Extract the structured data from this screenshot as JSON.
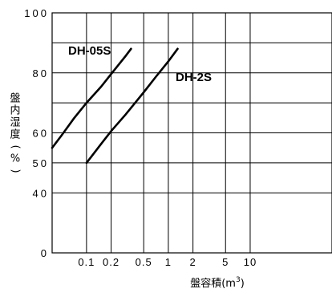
{
  "chart_data": {
    "type": "line",
    "title": "",
    "xlabel_main": "盤容積(",
    "xlabel_unit": "m",
    "xlabel_sup": "3",
    "xlabel_close": ")",
    "ylabel_chars": [
      "盤",
      "内",
      "湿",
      "度",
      "(",
      "%",
      ")"
    ],
    "x_scale": "log",
    "x_ticks": [
      {
        "value": 0.1,
        "label": "0.1"
      },
      {
        "value": 0.2,
        "label": "0.2"
      },
      {
        "value": 0.5,
        "label": "0.5"
      },
      {
        "value": 1,
        "label": "1"
      },
      {
        "value": 2,
        "label": "2"
      },
      {
        "value": 5,
        "label": "5"
      },
      {
        "value": 10,
        "label": "10"
      }
    ],
    "x_grid": [
      0.1,
      0.2,
      0.5,
      1,
      2,
      5,
      10
    ],
    "xlim": [
      0.038,
      100
    ],
    "y_ticks": [
      {
        "value": 0,
        "label": "0"
      },
      {
        "value": 40,
        "label": "40"
      },
      {
        "value": 50,
        "label": "50"
      },
      {
        "value": 60,
        "label": "60"
      },
      {
        "value": 80,
        "label": "80"
      },
      {
        "value": 100,
        "label": "100"
      }
    ],
    "y_scale_points": [
      {
        "value": 0,
        "pos": 0
      },
      {
        "value": 40,
        "pos": 2
      },
      {
        "value": 50,
        "pos": 3
      },
      {
        "value": 60,
        "pos": 4
      },
      {
        "value": 70,
        "pos": 5
      },
      {
        "value": 80,
        "pos": 6
      },
      {
        "value": 90,
        "pos": 7
      },
      {
        "value": 100,
        "pos": 8
      }
    ],
    "y_grid": [
      0,
      40,
      50,
      60,
      70,
      80,
      90,
      100
    ],
    "series": [
      {
        "name": "DH-05S",
        "points": [
          [
            0.038,
            55
          ],
          [
            0.05,
            59.3
          ],
          [
            0.07,
            64.8
          ],
          [
            0.1,
            70
          ],
          [
            0.15,
            75.3
          ],
          [
            0.2,
            79.6
          ],
          [
            0.3,
            85.6
          ],
          [
            0.35,
            88
          ]
        ]
      },
      {
        "name": "DH-2S",
        "points": [
          [
            0.1,
            50
          ],
          [
            0.15,
            56.2
          ],
          [
            0.2,
            60.6
          ],
          [
            0.3,
            66.1
          ],
          [
            0.5,
            73.5
          ],
          [
            0.7,
            78.6
          ],
          [
            1,
            83.8
          ],
          [
            1.3,
            88
          ]
        ]
      }
    ],
    "grid": true,
    "legend": "none"
  }
}
